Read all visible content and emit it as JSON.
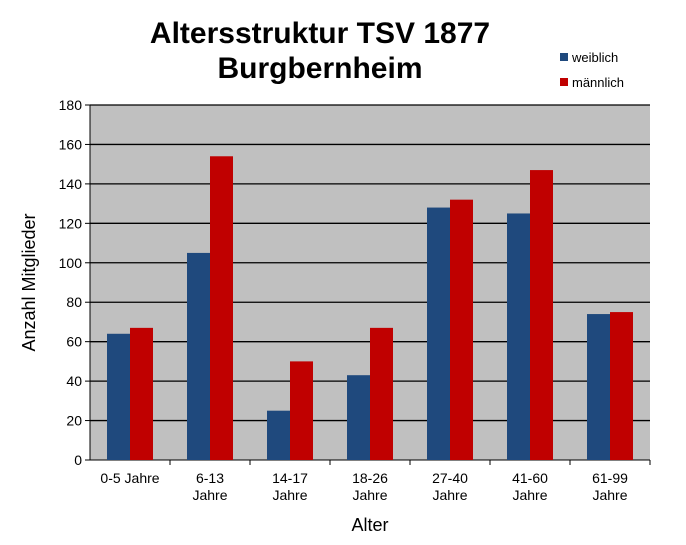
{
  "chart_data": {
    "type": "bar",
    "title_lines": [
      "Altersstruktur TSV 1877",
      "Burgbernheim"
    ],
    "xlabel": "Alter",
    "ylabel": "Anzahl  Mitglieder",
    "ylim": [
      0,
      180
    ],
    "yticks": [
      0,
      20,
      40,
      60,
      80,
      100,
      120,
      140,
      160,
      180
    ],
    "grid": true,
    "legend_position": "top-right",
    "categories": [
      [
        "0-5 Jahre"
      ],
      [
        "6-13",
        "Jahre"
      ],
      [
        "14-17",
        "Jahre"
      ],
      [
        "18-26",
        "Jahre"
      ],
      [
        "27-40",
        "Jahre"
      ],
      [
        "41-60",
        "Jahre"
      ],
      [
        "61-99",
        "Jahre"
      ]
    ],
    "series": [
      {
        "name": "weiblich",
        "color": "#1F497D",
        "values": [
          64,
          105,
          25,
          43,
          128,
          125,
          74
        ]
      },
      {
        "name": "männlich",
        "color": "#C00000",
        "values": [
          67,
          154,
          50,
          67,
          132,
          147,
          75
        ]
      }
    ],
    "plot_background": "#C0C0C0"
  }
}
